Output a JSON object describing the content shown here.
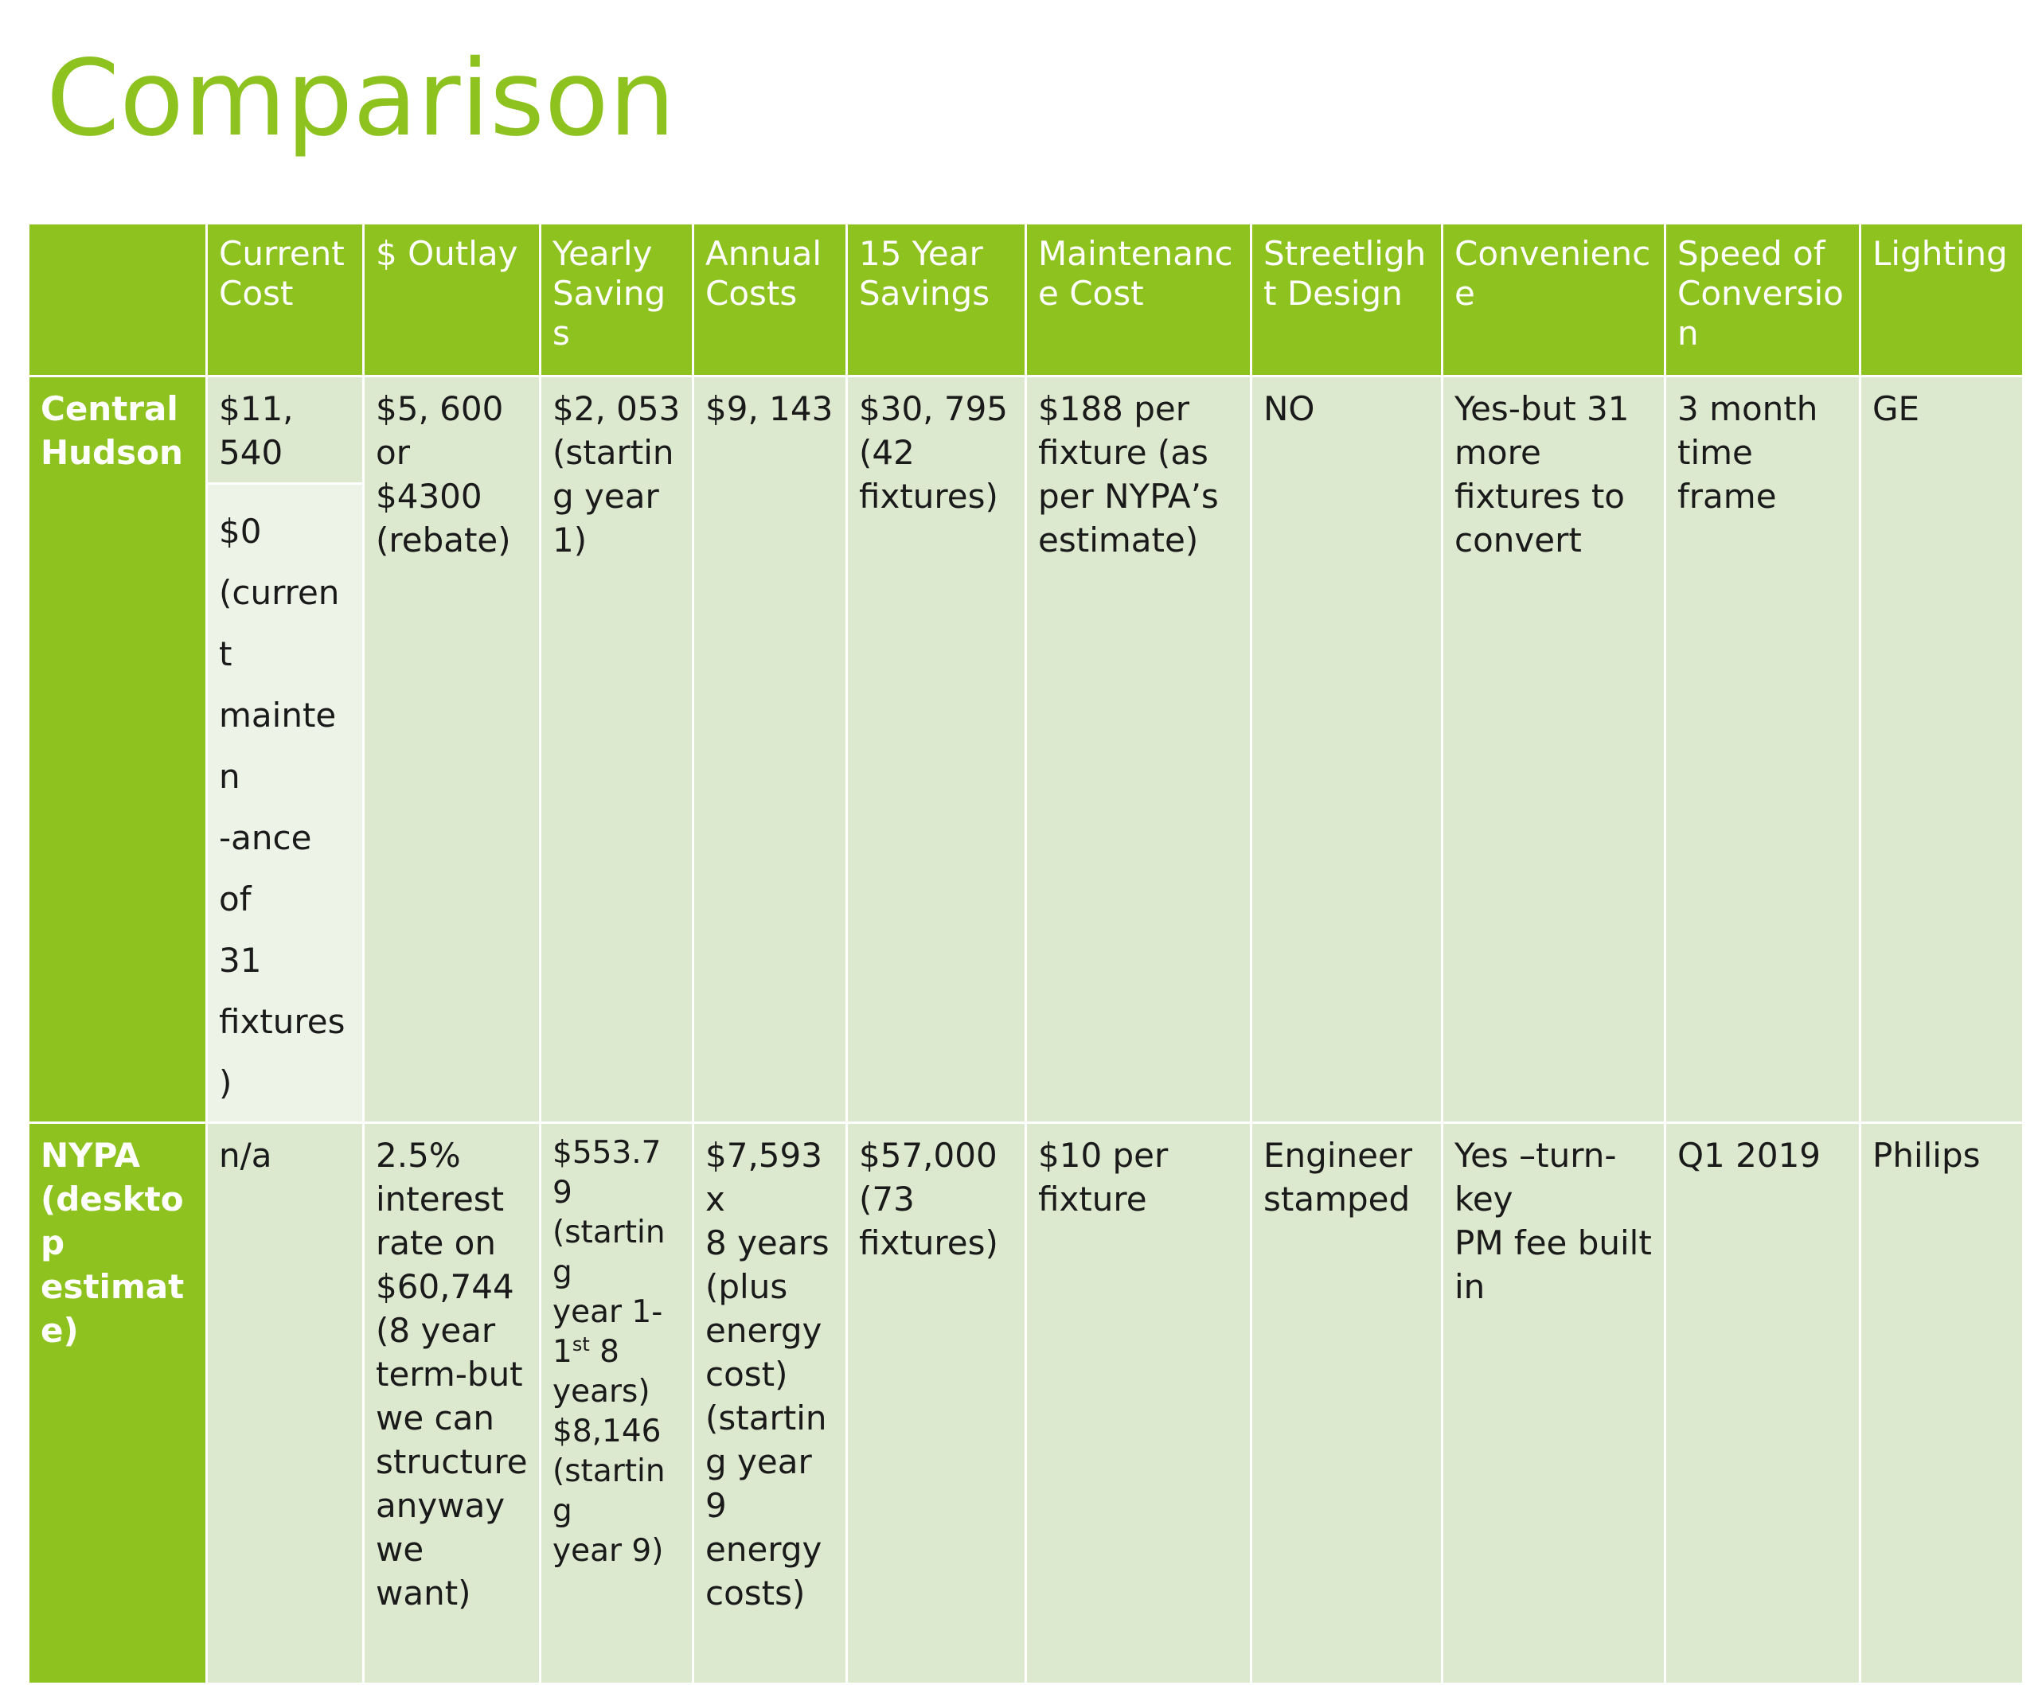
{
  "title": "Comparison",
  "table": {
    "headers": [
      "",
      "Current Cost",
      "$ Outlay",
      "Yearly Savings",
      "Annual Costs",
      "15 Year Savings",
      "Maintenance Cost",
      "Streetlight Design",
      "Convenience",
      "Speed of Conversion",
      "Lighting"
    ],
    "central_hudson": {
      "label": "Central Hudson",
      "current_cost": "$11, 540",
      "current_cost_maintenance": "$0\n(current\nmainten\n-ance of\n31\nfixtures)",
      "outlay": "$5, 600\nor\n$4300\n(rebate)",
      "yearly_savings": "$2, 053\n(startin\ng year\n1)",
      "annual_costs": "$9, 143",
      "fifteen_year_savings": "$30, 795\n(42\nfixtures)",
      "maintenance_cost": "$188 per\nfixture (as\nper NYPA’s\nestimate)",
      "streetlight_design": "NO",
      "convenience": "Yes-but 31\nmore\nfixtures to\nconvert",
      "speed_of_conversion": "3 month\ntime\nframe",
      "lighting": "GE"
    },
    "nypa": {
      "label": "NYPA (desktop estimate)",
      "current_cost": "n/a",
      "outlay": "2.5%\ninterest\nrate on\n$60,744\n(8 year\nterm-but\nwe can\nstructure\nanyway\nwe want)",
      "yearly_savings_part1": "$553.79\n(starting\nyear 1-\n1",
      "yearly_savings_sup": "st",
      "yearly_savings_part2": " 8\nyears)\n$8,146\n(starting\nyear 9)",
      "annual_costs": "$7,593 x\n8 years\n(plus\nenergy\ncost)\n(startin\ng year 9\nenergy\ncosts)",
      "fifteen_year_savings": "$57,000\n(73\nfixtures)",
      "maintenance_cost": "$10 per\nfixture",
      "streetlight_design": "Engineer\nstamped",
      "convenience": "Yes –turn-\nkey\nPM fee built\nin",
      "speed_of_conversion": "Q1 2019",
      "lighting": "Philips"
    }
  }
}
